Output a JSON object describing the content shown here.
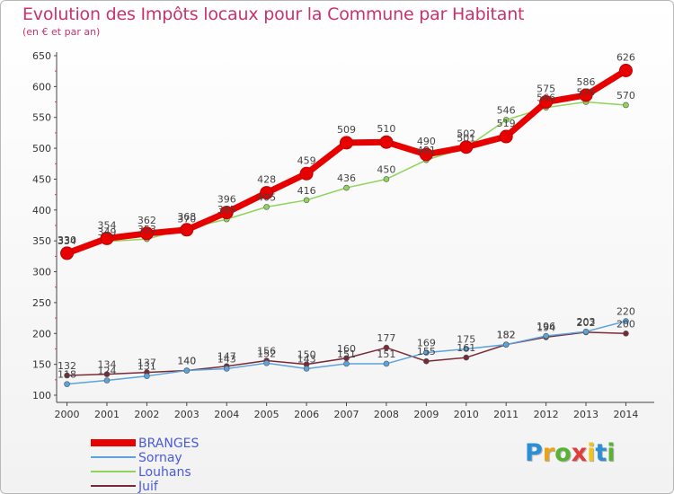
{
  "header": {
    "title": "Evolution des Impôts locaux pour la Commune par Habitant",
    "subtitle": "(en € et par an)"
  },
  "brand": {
    "text": "Proxiti",
    "letter_colors": [
      "#2a8fd6",
      "#e8a21c",
      "#58b233",
      "#e23b3b",
      "#f0c419",
      "#2a8fd6",
      "#58b233"
    ]
  },
  "chart_data": {
    "type": "line",
    "x": [
      2000,
      2001,
      2002,
      2003,
      2004,
      2005,
      2006,
      2007,
      2008,
      2009,
      2010,
      2011,
      2012,
      2013,
      2014
    ],
    "ylim": [
      100,
      650
    ],
    "yticks": [
      100,
      150,
      200,
      250,
      300,
      350,
      400,
      450,
      500,
      550,
      600,
      650
    ],
    "grid": false,
    "legend_position": "bottom-left",
    "series": [
      {
        "name": "BRANGES",
        "color": "#e60000",
        "width": 7,
        "marker": 7,
        "values": [
          330,
          354,
          362,
          368,
          396,
          428,
          459,
          509,
          510,
          490,
          502,
          519,
          575,
          586,
          626
        ]
      },
      {
        "name": "Sornay",
        "color": "#5ba3dc",
        "width": 1.5,
        "marker": 3,
        "values": [
          118,
          124,
          131,
          140,
          143,
          152,
          143,
          151,
          151,
          169,
          175,
          182,
          196,
          203,
          220
        ]
      },
      {
        "name": "Louhans",
        "color": "#8fd35a",
        "width": 1.5,
        "marker": 3,
        "values": [
          334,
          349,
          353,
          370,
          385,
          405,
          416,
          436,
          450,
          481,
          501,
          546,
          566,
          575,
          570
        ]
      },
      {
        "name": "Juif",
        "color": "#7a2a36",
        "width": 1.5,
        "marker": 3,
        "values": [
          132,
          134,
          137,
          140,
          147,
          156,
          150,
          160,
          177,
          155,
          161,
          182,
          194,
          202,
          200
        ]
      }
    ]
  }
}
